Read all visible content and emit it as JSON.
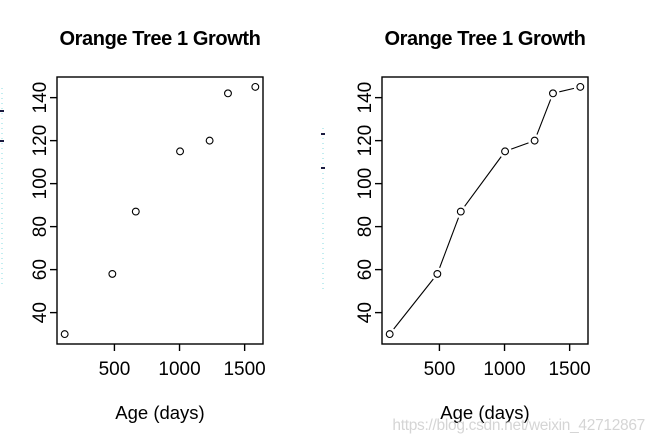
{
  "watermark": {
    "text": "https://blog.csdn.net/weixin_42712867",
    "color": "#d5d5d5"
  },
  "axis_color": "#000000",
  "background": "#ffffff",
  "chart_data": [
    {
      "type": "scatter",
      "style": "points",
      "title": "Orange Tree 1 Growth",
      "xlabel": "Age (days)",
      "ylabel_clipped": true,
      "x": [
        118,
        484,
        664,
        1004,
        1231,
        1372,
        1582
      ],
      "y": [
        30,
        58,
        87,
        115,
        120,
        142,
        145
      ],
      "x_ticks": [
        500,
        1000,
        1500
      ],
      "y_ticks": [
        40,
        60,
        80,
        100,
        120,
        140
      ],
      "xlim": [
        59,
        1641
      ],
      "ylim": [
        25.4,
        149.6
      ],
      "marker": "open-circle",
      "grid": false,
      "legend": false
    },
    {
      "type": "line",
      "style": "points+lines",
      "title": "Orange Tree 1 Growth",
      "xlabel": "Age (days)",
      "ylabel_clipped": true,
      "x": [
        118,
        484,
        664,
        1004,
        1231,
        1372,
        1582
      ],
      "y": [
        30,
        58,
        87,
        115,
        120,
        142,
        145
      ],
      "x_ticks": [
        500,
        1000,
        1500
      ],
      "y_ticks": [
        40,
        60,
        80,
        100,
        120,
        140
      ],
      "xlim": [
        59,
        1641
      ],
      "ylim": [
        25.4,
        149.6
      ],
      "marker": "open-circle",
      "grid": false,
      "legend": false
    }
  ]
}
